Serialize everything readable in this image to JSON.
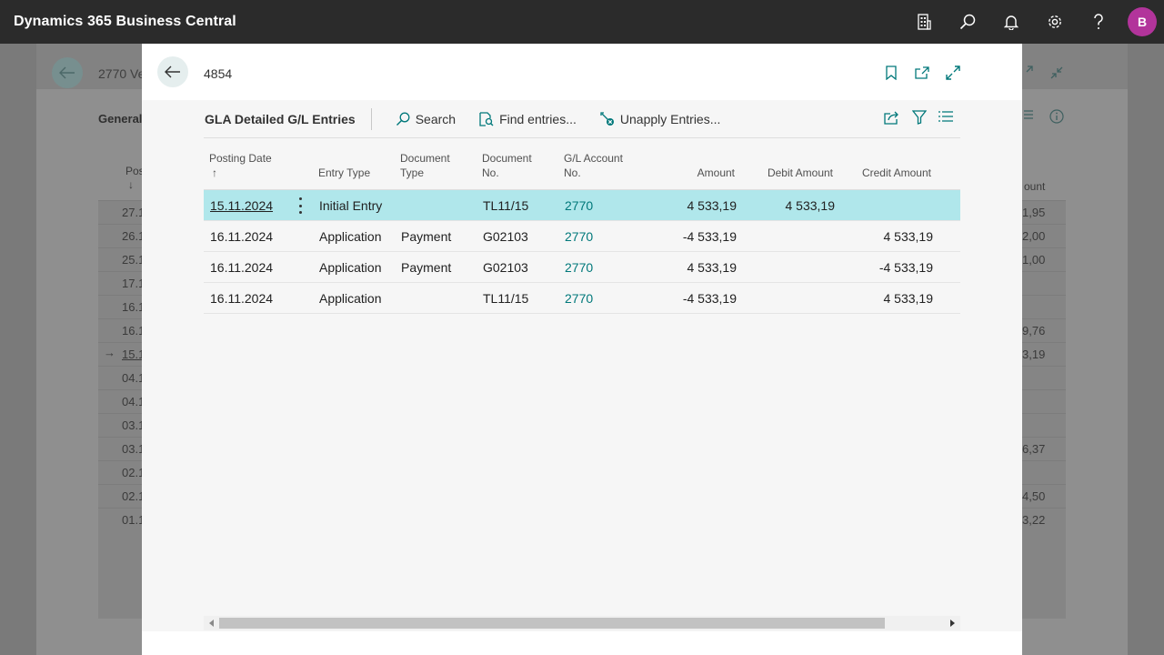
{
  "app": {
    "title": "Dynamics 365 Business Central",
    "avatar_initial": "B"
  },
  "topbar_icons": [
    "company-icon",
    "search-icon",
    "bell-icon",
    "gear-icon",
    "help-icon"
  ],
  "background_page": {
    "title": "2770 Ve",
    "tab": "General",
    "column_header": "Pos",
    "column_header_right": "ount",
    "rows": [
      {
        "date": "27.1",
        "amount": "1,95"
      },
      {
        "date": "26.1",
        "amount": "2,00"
      },
      {
        "date": "25.1",
        "amount": "1,00"
      },
      {
        "date": "17.1",
        "amount": ""
      },
      {
        "date": "16.1",
        "amount": ""
      },
      {
        "date": "16.1",
        "amount": "9,76"
      },
      {
        "date": "15.1",
        "amount": "3,19",
        "current": true
      },
      {
        "date": "04.1",
        "amount": ""
      },
      {
        "date": "04.1",
        "amount": ""
      },
      {
        "date": "03.1",
        "amount": ""
      },
      {
        "date": "03.1",
        "amount": "6,37"
      },
      {
        "date": "02.1",
        "amount": ""
      },
      {
        "date": "02.1",
        "amount": "4,50"
      },
      {
        "date": "01.1",
        "amount": "3,22"
      }
    ]
  },
  "modal": {
    "title": "4854",
    "page_caption": "GLA Detailed G/L Entries",
    "actions": {
      "search": "Search",
      "find_entries": "Find entries...",
      "unapply_entries": "Unapply Entries..."
    },
    "columns": {
      "posting_date": "Posting Date",
      "sort_arrow": "↑",
      "entry_type": "Entry Type",
      "document_type_1": "Document",
      "document_type_2": "Type",
      "document_no_1": "Document",
      "document_no_2": "No.",
      "gl_account_1": "G/L Account",
      "gl_account_2": "No.",
      "amount": "Amount",
      "debit_amount": "Debit Amount",
      "credit_amount": "Credit Amount"
    },
    "rows": [
      {
        "posting_date": "15.11.2024",
        "entry_type": "Initial Entry",
        "document_type": "",
        "document_no": "TL11/15",
        "gl_account": "2770",
        "amount": "4 533,19",
        "debit": "4 533,19",
        "credit": ""
      },
      {
        "posting_date": "16.11.2024",
        "entry_type": "Application",
        "document_type": "Payment",
        "document_no": "G02103",
        "gl_account": "2770",
        "amount": "-4 533,19",
        "debit": "",
        "credit": "4 533,19"
      },
      {
        "posting_date": "16.11.2024",
        "entry_type": "Application",
        "document_type": "Payment",
        "document_no": "G02103",
        "gl_account": "2770",
        "amount": "4 533,19",
        "debit": "",
        "credit": "-4 533,19"
      },
      {
        "posting_date": "16.11.2024",
        "entry_type": "Application",
        "document_type": "",
        "document_no": "TL11/15",
        "gl_account": "2770",
        "amount": "-4 533,19",
        "debit": "",
        "credit": "4 533,19"
      }
    ]
  },
  "colors": {
    "accent": "#00787a",
    "selected_row": "#b0e7eb",
    "avatar": "#b2349b",
    "topbar": "#2b2b2b"
  }
}
